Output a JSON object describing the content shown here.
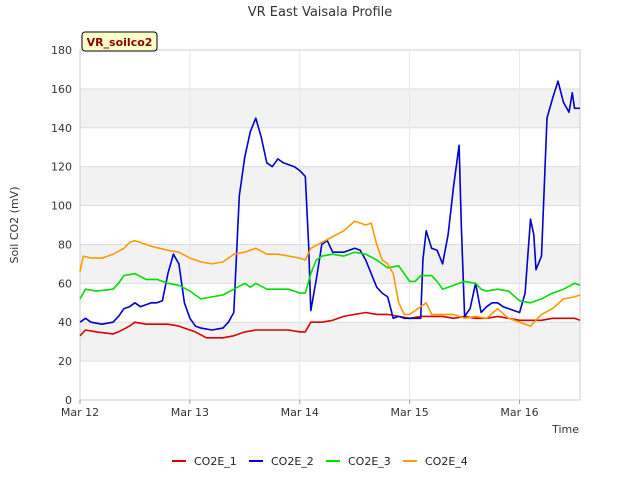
{
  "chart_data": {
    "type": "line",
    "title": "VR East Vaisala Profile",
    "badge": "VR_soilco2",
    "xlabel": "Time",
    "ylabel": "Soil CO2 (mV)",
    "xlim": [
      0,
      4.55
    ],
    "ylim": [
      0,
      180
    ],
    "yticks": [
      0,
      20,
      40,
      60,
      80,
      100,
      120,
      140,
      160,
      180
    ],
    "xticks": [
      {
        "value": 0,
        "label": "Mar 12"
      },
      {
        "value": 1,
        "label": "Mar 13"
      },
      {
        "value": 2,
        "label": "Mar 14"
      },
      {
        "value": 3,
        "label": "Mar 15"
      },
      {
        "value": 4,
        "label": "Mar 16"
      }
    ],
    "series": [
      {
        "name": "CO2E_1",
        "color": "#dd0000",
        "points": [
          [
            0,
            33
          ],
          [
            0.05,
            36
          ],
          [
            0.15,
            35
          ],
          [
            0.3,
            34
          ],
          [
            0.35,
            35
          ],
          [
            0.45,
            38
          ],
          [
            0.5,
            40
          ],
          [
            0.6,
            39
          ],
          [
            0.8,
            39
          ],
          [
            0.9,
            38
          ],
          [
            0.95,
            37
          ],
          [
            1.05,
            35
          ],
          [
            1.15,
            32
          ],
          [
            1.3,
            32
          ],
          [
            1.4,
            33
          ],
          [
            1.5,
            35
          ],
          [
            1.6,
            36
          ],
          [
            1.7,
            36
          ],
          [
            1.8,
            36
          ],
          [
            1.9,
            36
          ],
          [
            2.0,
            35
          ],
          [
            2.05,
            35
          ],
          [
            2.1,
            40
          ],
          [
            2.2,
            40
          ],
          [
            2.3,
            41
          ],
          [
            2.4,
            43
          ],
          [
            2.5,
            44
          ],
          [
            2.6,
            45
          ],
          [
            2.7,
            44
          ],
          [
            2.8,
            44
          ],
          [
            2.9,
            43
          ],
          [
            3.0,
            42
          ],
          [
            3.1,
            43
          ],
          [
            3.2,
            43
          ],
          [
            3.3,
            43
          ],
          [
            3.4,
            42
          ],
          [
            3.5,
            43
          ],
          [
            3.6,
            42
          ],
          [
            3.7,
            42
          ],
          [
            3.8,
            43
          ],
          [
            3.9,
            42
          ],
          [
            4.0,
            41
          ],
          [
            4.1,
            41
          ],
          [
            4.2,
            41
          ],
          [
            4.3,
            42
          ],
          [
            4.4,
            42
          ],
          [
            4.5,
            42
          ],
          [
            4.55,
            41
          ]
        ]
      },
      {
        "name": "CO2E_2",
        "color": "#0000cc",
        "points": [
          [
            0,
            40
          ],
          [
            0.05,
            42
          ],
          [
            0.1,
            40
          ],
          [
            0.2,
            39
          ],
          [
            0.3,
            40
          ],
          [
            0.35,
            43
          ],
          [
            0.4,
            47
          ],
          [
            0.45,
            48
          ],
          [
            0.5,
            50
          ],
          [
            0.55,
            48
          ],
          [
            0.65,
            50
          ],
          [
            0.7,
            50
          ],
          [
            0.75,
            51
          ],
          [
            0.8,
            65
          ],
          [
            0.85,
            75
          ],
          [
            0.9,
            70
          ],
          [
            0.95,
            50
          ],
          [
            1.0,
            42
          ],
          [
            1.05,
            38
          ],
          [
            1.1,
            37
          ],
          [
            1.2,
            36
          ],
          [
            1.3,
            37
          ],
          [
            1.35,
            40
          ],
          [
            1.4,
            45
          ],
          [
            1.45,
            105
          ],
          [
            1.5,
            125
          ],
          [
            1.55,
            138
          ],
          [
            1.6,
            145
          ],
          [
            1.65,
            135
          ],
          [
            1.7,
            122
          ],
          [
            1.75,
            120
          ],
          [
            1.8,
            124
          ],
          [
            1.85,
            122
          ],
          [
            1.95,
            120
          ],
          [
            2.0,
            118
          ],
          [
            2.05,
            115
          ],
          [
            2.08,
            80
          ],
          [
            2.1,
            46
          ],
          [
            2.15,
            62
          ],
          [
            2.2,
            80
          ],
          [
            2.25,
            82
          ],
          [
            2.3,
            76
          ],
          [
            2.4,
            76
          ],
          [
            2.5,
            78
          ],
          [
            2.55,
            77
          ],
          [
            2.6,
            72
          ],
          [
            2.7,
            58
          ],
          [
            2.75,
            55
          ],
          [
            2.8,
            53
          ],
          [
            2.85,
            42
          ],
          [
            2.9,
            43
          ],
          [
            2.95,
            42
          ],
          [
            3.0,
            42
          ],
          [
            3.05,
            42
          ],
          [
            3.1,
            42
          ],
          [
            3.12,
            72
          ],
          [
            3.15,
            87
          ],
          [
            3.2,
            78
          ],
          [
            3.25,
            77
          ],
          [
            3.3,
            70
          ],
          [
            3.35,
            85
          ],
          [
            3.4,
            110
          ],
          [
            3.45,
            131
          ],
          [
            3.47,
            90
          ],
          [
            3.5,
            43
          ],
          [
            3.55,
            47
          ],
          [
            3.6,
            60
          ],
          [
            3.65,
            45
          ],
          [
            3.7,
            48
          ],
          [
            3.75,
            50
          ],
          [
            3.8,
            50
          ],
          [
            3.85,
            48
          ],
          [
            3.9,
            47
          ],
          [
            3.95,
            46
          ],
          [
            4.0,
            45
          ],
          [
            4.05,
            55
          ],
          [
            4.1,
            93
          ],
          [
            4.13,
            85
          ],
          [
            4.15,
            67
          ],
          [
            4.2,
            74
          ],
          [
            4.25,
            145
          ],
          [
            4.3,
            155
          ],
          [
            4.35,
            164
          ],
          [
            4.4,
            153
          ],
          [
            4.45,
            148
          ],
          [
            4.48,
            158
          ],
          [
            4.5,
            150
          ],
          [
            4.55,
            150
          ]
        ]
      },
      {
        "name": "CO2E_3",
        "color": "#00dd00",
        "points": [
          [
            0,
            52
          ],
          [
            0.05,
            57
          ],
          [
            0.15,
            56
          ],
          [
            0.3,
            57
          ],
          [
            0.35,
            60
          ],
          [
            0.4,
            64
          ],
          [
            0.5,
            65
          ],
          [
            0.6,
            62
          ],
          [
            0.7,
            62
          ],
          [
            0.8,
            60
          ],
          [
            0.9,
            59
          ],
          [
            1.0,
            56
          ],
          [
            1.1,
            52
          ],
          [
            1.2,
            53
          ],
          [
            1.3,
            54
          ],
          [
            1.4,
            57
          ],
          [
            1.5,
            60
          ],
          [
            1.55,
            58
          ],
          [
            1.6,
            60
          ],
          [
            1.7,
            57
          ],
          [
            1.8,
            57
          ],
          [
            1.9,
            57
          ],
          [
            1.95,
            56
          ],
          [
            2.0,
            55
          ],
          [
            2.05,
            55
          ],
          [
            2.1,
            65
          ],
          [
            2.15,
            72
          ],
          [
            2.2,
            74
          ],
          [
            2.3,
            75
          ],
          [
            2.4,
            74
          ],
          [
            2.5,
            76
          ],
          [
            2.6,
            75
          ],
          [
            2.7,
            72
          ],
          [
            2.75,
            70
          ],
          [
            2.8,
            68
          ],
          [
            2.9,
            69
          ],
          [
            3.0,
            61
          ],
          [
            3.05,
            61
          ],
          [
            3.1,
            64
          ],
          [
            3.2,
            64
          ],
          [
            3.25,
            61
          ],
          [
            3.3,
            57
          ],
          [
            3.4,
            59
          ],
          [
            3.5,
            61
          ],
          [
            3.6,
            60
          ],
          [
            3.65,
            57
          ],
          [
            3.7,
            56
          ],
          [
            3.8,
            57
          ],
          [
            3.9,
            56
          ],
          [
            4.0,
            51
          ],
          [
            4.1,
            50
          ],
          [
            4.2,
            52
          ],
          [
            4.3,
            55
          ],
          [
            4.4,
            57
          ],
          [
            4.5,
            60
          ],
          [
            4.55,
            59
          ]
        ]
      },
      {
        "name": "CO2E_4",
        "color": "#ff9900",
        "points": [
          [
            0,
            66
          ],
          [
            0.03,
            74
          ],
          [
            0.1,
            73
          ],
          [
            0.2,
            73
          ],
          [
            0.3,
            75
          ],
          [
            0.4,
            78
          ],
          [
            0.45,
            81
          ],
          [
            0.5,
            82
          ],
          [
            0.6,
            80
          ],
          [
            0.65,
            79
          ],
          [
            0.8,
            77
          ],
          [
            0.9,
            76
          ],
          [
            1.0,
            73
          ],
          [
            1.1,
            71
          ],
          [
            1.2,
            70
          ],
          [
            1.3,
            71
          ],
          [
            1.35,
            73
          ],
          [
            1.4,
            75
          ],
          [
            1.5,
            76
          ],
          [
            1.55,
            77
          ],
          [
            1.6,
            78
          ],
          [
            1.7,
            75
          ],
          [
            1.8,
            75
          ],
          [
            1.9,
            74
          ],
          [
            2.0,
            73
          ],
          [
            2.05,
            72
          ],
          [
            2.1,
            78
          ],
          [
            2.2,
            81
          ],
          [
            2.3,
            84
          ],
          [
            2.4,
            87
          ],
          [
            2.5,
            92
          ],
          [
            2.6,
            90
          ],
          [
            2.65,
            91
          ],
          [
            2.7,
            80
          ],
          [
            2.75,
            72
          ],
          [
            2.8,
            70
          ],
          [
            2.85,
            65
          ],
          [
            2.9,
            50
          ],
          [
            2.95,
            44
          ],
          [
            3.0,
            44
          ],
          [
            3.1,
            48
          ],
          [
            3.15,
            50
          ],
          [
            3.2,
            44
          ],
          [
            3.3,
            44
          ],
          [
            3.4,
            44
          ],
          [
            3.5,
            42
          ],
          [
            3.6,
            43
          ],
          [
            3.7,
            42
          ],
          [
            3.8,
            47
          ],
          [
            3.9,
            42
          ],
          [
            4.0,
            40
          ],
          [
            4.1,
            38
          ],
          [
            4.2,
            44
          ],
          [
            4.3,
            47
          ],
          [
            4.4,
            52
          ],
          [
            4.5,
            53
          ],
          [
            4.55,
            54
          ]
        ]
      }
    ]
  }
}
